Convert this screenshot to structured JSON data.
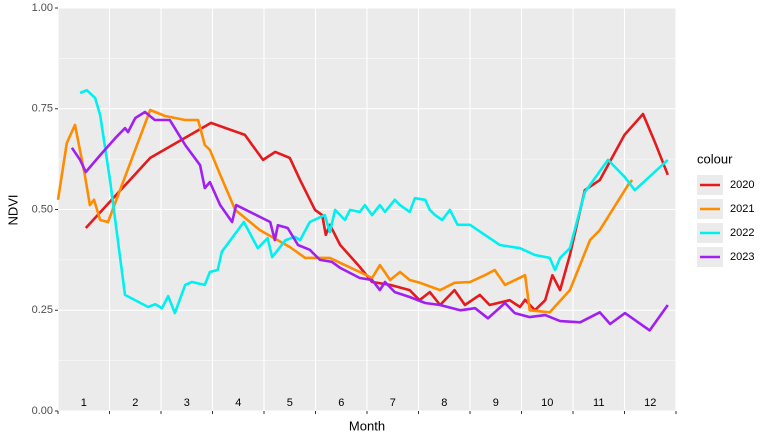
{
  "chart_data": {
    "type": "line",
    "x_label": "Month",
    "y_label": "NDVI",
    "legend_title": "colour",
    "xlim": [
      0.5,
      12.5
    ],
    "xticks": [
      0.5,
      1.5,
      2.5,
      3.5,
      4.5,
      5.5,
      6.5,
      7.5,
      8.5,
      9.5,
      10.5,
      11.5,
      12.5
    ],
    "month_labels": [
      1,
      2,
      3,
      4,
      5,
      6,
      7,
      8,
      9,
      10,
      11,
      12
    ],
    "ylim": [
      0,
      1
    ],
    "yticks": [
      {
        "value": 0,
        "label": "0.00"
      },
      {
        "value": 0.25,
        "label": "0.25"
      },
      {
        "value": 0.5,
        "label": "0.50"
      },
      {
        "value": 0.75,
        "label": "0.75"
      },
      {
        "value": 1,
        "label": "1.00"
      }
    ],
    "grid": true,
    "legend": "right",
    "series": [
      {
        "name": "2020",
        "color": "#e41a1c",
        "x": [
          1.04,
          2.29,
          3.47,
          4.13,
          4.48,
          4.72,
          5.0,
          5.2,
          5.49,
          5.63,
          5.7,
          5.78,
          5.98,
          6.33,
          6.6,
          6.95,
          7.33,
          7.52,
          7.72,
          7.92,
          8.2,
          8.4,
          8.69,
          8.88,
          9.27,
          9.47,
          9.57,
          9.76,
          9.96,
          10.1,
          10.25,
          10.44,
          10.73,
          11.02,
          11.5,
          11.86,
          12.09,
          12.34
        ],
        "values": [
          0.454,
          0.628,
          0.715,
          0.685,
          0.623,
          0.643,
          0.628,
          0.573,
          0.499,
          0.486,
          0.437,
          0.462,
          0.412,
          0.362,
          0.32,
          0.313,
          0.3,
          0.275,
          0.295,
          0.263,
          0.3,
          0.263,
          0.288,
          0.263,
          0.275,
          0.258,
          0.276,
          0.25,
          0.275,
          0.337,
          0.3,
          0.387,
          0.548,
          0.573,
          0.685,
          0.737,
          0.667,
          0.586
        ]
      },
      {
        "name": "2021",
        "color": "#ff8c00",
        "x": [
          0.5,
          0.67,
          0.83,
          1.02,
          1.12,
          1.2,
          1.32,
          1.47,
          2.29,
          2.58,
          2.97,
          3.22,
          3.35,
          3.45,
          3.65,
          3.94,
          4.42,
          5.0,
          5.3,
          5.78,
          6.07,
          6.36,
          6.6,
          6.75,
          6.95,
          7.14,
          7.33,
          7.53,
          7.92,
          8.2,
          8.5,
          8.79,
          8.98,
          9.18,
          9.57,
          9.66,
          10.05,
          10.44,
          10.83,
          11.02,
          11.57,
          11.65
        ],
        "values": [
          0.524,
          0.665,
          0.71,
          0.586,
          0.511,
          0.524,
          0.474,
          0.469,
          0.747,
          0.732,
          0.722,
          0.722,
          0.66,
          0.648,
          0.586,
          0.499,
          0.449,
          0.407,
          0.38,
          0.38,
          0.362,
          0.345,
          0.33,
          0.362,
          0.325,
          0.345,
          0.325,
          0.318,
          0.3,
          0.318,
          0.32,
          0.337,
          0.35,
          0.313,
          0.337,
          0.25,
          0.245,
          0.3,
          0.424,
          0.449,
          0.561,
          0.573
        ]
      },
      {
        "name": "2022",
        "color": "#00f0f0",
        "x": [
          0.93,
          1.06,
          1.22,
          1.32,
          1.51,
          1.8,
          2.25,
          2.39,
          2.52,
          2.64,
          2.77,
          2.97,
          3.1,
          3.35,
          3.45,
          3.6,
          3.68,
          4.11,
          4.38,
          4.57,
          4.66,
          4.92,
          5.1,
          5.2,
          5.39,
          5.68,
          5.78,
          5.88,
          6.07,
          6.17,
          6.36,
          6.46,
          6.6,
          6.75,
          6.85,
          7.04,
          7.14,
          7.33,
          7.43,
          7.63,
          7.72,
          7.82,
          7.96,
          8.11,
          8.26,
          8.5,
          8.79,
          9.08,
          9.47,
          9.76,
          10.05,
          10.15,
          10.25,
          10.44,
          10.73,
          11.18,
          11.51,
          11.7,
          12.34
        ],
        "values": [
          0.789,
          0.796,
          0.777,
          0.734,
          0.573,
          0.288,
          0.258,
          0.265,
          0.255,
          0.285,
          0.243,
          0.313,
          0.32,
          0.313,
          0.345,
          0.35,
          0.395,
          0.469,
          0.404,
          0.429,
          0.382,
          0.424,
          0.432,
          0.424,
          0.469,
          0.486,
          0.444,
          0.499,
          0.474,
          0.499,
          0.494,
          0.511,
          0.486,
          0.511,
          0.494,
          0.524,
          0.511,
          0.494,
          0.528,
          0.524,
          0.499,
          0.486,
          0.474,
          0.499,
          0.462,
          0.462,
          0.437,
          0.412,
          0.404,
          0.387,
          0.38,
          0.35,
          0.38,
          0.404,
          0.543,
          0.623,
          0.58,
          0.548,
          0.623
        ]
      },
      {
        "name": "2023",
        "color": "#a020f0",
        "x": [
          0.77,
          0.93,
          1.04,
          1.32,
          1.61,
          1.8,
          1.86,
          2.0,
          2.19,
          2.38,
          2.67,
          2.97,
          3.26,
          3.35,
          3.45,
          3.65,
          3.88,
          3.96,
          4.62,
          4.71,
          4.77,
          4.96,
          5.16,
          5.39,
          5.49,
          5.59,
          5.82,
          5.98,
          6.36,
          6.6,
          6.75,
          6.85,
          7.04,
          7.33,
          7.63,
          7.92,
          8.31,
          8.6,
          8.85,
          9.18,
          9.37,
          9.66,
          9.96,
          10.25,
          10.64,
          11.02,
          11.22,
          11.51,
          11.99,
          12.34
        ],
        "values": [
          0.653,
          0.623,
          0.593,
          0.635,
          0.677,
          0.702,
          0.692,
          0.727,
          0.742,
          0.722,
          0.722,
          0.66,
          0.61,
          0.553,
          0.568,
          0.511,
          0.469,
          0.511,
          0.469,
          0.424,
          0.461,
          0.454,
          0.412,
          0.4,
          0.387,
          0.375,
          0.37,
          0.355,
          0.33,
          0.325,
          0.3,
          0.32,
          0.295,
          0.283,
          0.268,
          0.263,
          0.25,
          0.255,
          0.23,
          0.268,
          0.243,
          0.233,
          0.238,
          0.223,
          0.22,
          0.245,
          0.216,
          0.243,
          0.2,
          0.263
        ]
      }
    ]
  }
}
